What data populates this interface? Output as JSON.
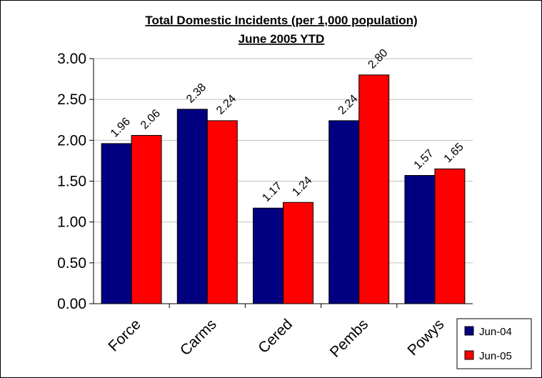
{
  "chart_data": {
    "type": "bar",
    "title": "Total Domestic Incidents (per 1,000 population)",
    "subtitle": "June 2005 YTD",
    "categories": [
      "Force",
      "Carms",
      "Cered",
      "Pembs",
      "Powys"
    ],
    "series": [
      {
        "name": "Jun-04",
        "color": "#000080",
        "values": [
          1.96,
          2.38,
          1.17,
          2.24,
          1.57
        ],
        "labels": [
          "1.96",
          "2.38",
          "1.17",
          "2.24",
          "1.57"
        ]
      },
      {
        "name": "Jun-05",
        "color": "#FF0000",
        "values": [
          2.06,
          2.24,
          1.24,
          2.8,
          1.65
        ],
        "labels": [
          "2.06",
          "2.24",
          "1.24",
          "2.80",
          "1.65"
        ]
      }
    ],
    "ylim": [
      0,
      3.0
    ],
    "yticks": [
      "0.00",
      "0.50",
      "1.00",
      "1.50",
      "2.00",
      "2.50",
      "3.00"
    ],
    "xlabel": "",
    "ylabel": "",
    "grid": true,
    "legend": "bottom-right"
  }
}
